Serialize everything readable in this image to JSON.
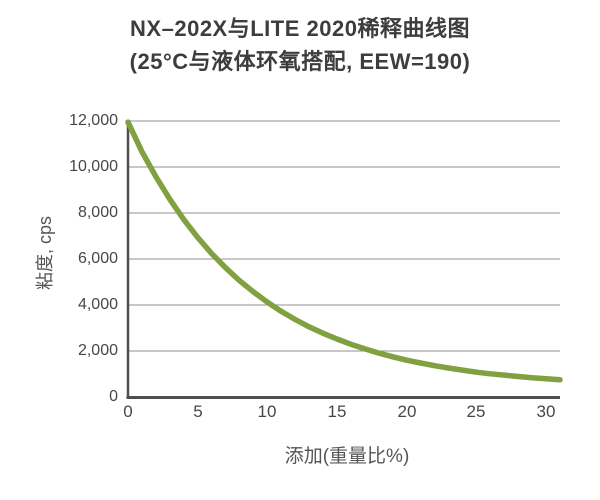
{
  "title": {
    "line1": "NX–202X与LITE 2020稀释曲线图",
    "line2": "(25°C与液体环氧搭配, EEW=190)"
  },
  "colors": {
    "curve": "#81a03f",
    "grid": "#919191",
    "axis": "#4f4f4f",
    "tick_text": "#474747",
    "title_text": "#3d3d3d"
  },
  "chart_data": {
    "type": "line",
    "title": "NX–202X与LITE 2020稀释曲线图",
    "subtitle": "(25°C与液体环氧搭配, EEW=190)",
    "xlabel": "添加(重量比%)",
    "ylabel": "粘度, cps",
    "xlim": [
      0,
      31
    ],
    "ylim": [
      0,
      12000
    ],
    "xticks": [
      0,
      5,
      10,
      15,
      20,
      25,
      30
    ],
    "xtick_labels": [
      "0",
      "5",
      "10",
      "15",
      "20",
      "25",
      "30"
    ],
    "yticks": [
      0,
      2000,
      4000,
      6000,
      8000,
      10000,
      12000
    ],
    "ytick_labels": [
      "0",
      "2,000",
      "4,000",
      "6,000",
      "8,000",
      "10,000",
      "12,000"
    ],
    "grid": "horizontal-only",
    "legend": "none",
    "series": [
      {
        "color": "#81a03f",
        "x": [
          0,
          1,
          2,
          3,
          4,
          5,
          6,
          7,
          8,
          9,
          10,
          11,
          12,
          13,
          14,
          15,
          16,
          17,
          18,
          19,
          20,
          21,
          22,
          23,
          24,
          25,
          26,
          27,
          28,
          29,
          30,
          31
        ],
        "y": [
          11950,
          10670,
          9580,
          8600,
          7720,
          6940,
          6240,
          5620,
          5060,
          4570,
          4120,
          3720,
          3370,
          3050,
          2770,
          2520,
          2290,
          2090,
          1910,
          1750,
          1600,
          1480,
          1360,
          1260,
          1170,
          1080,
          1010,
          950,
          890,
          840,
          790,
          750
        ]
      }
    ]
  }
}
